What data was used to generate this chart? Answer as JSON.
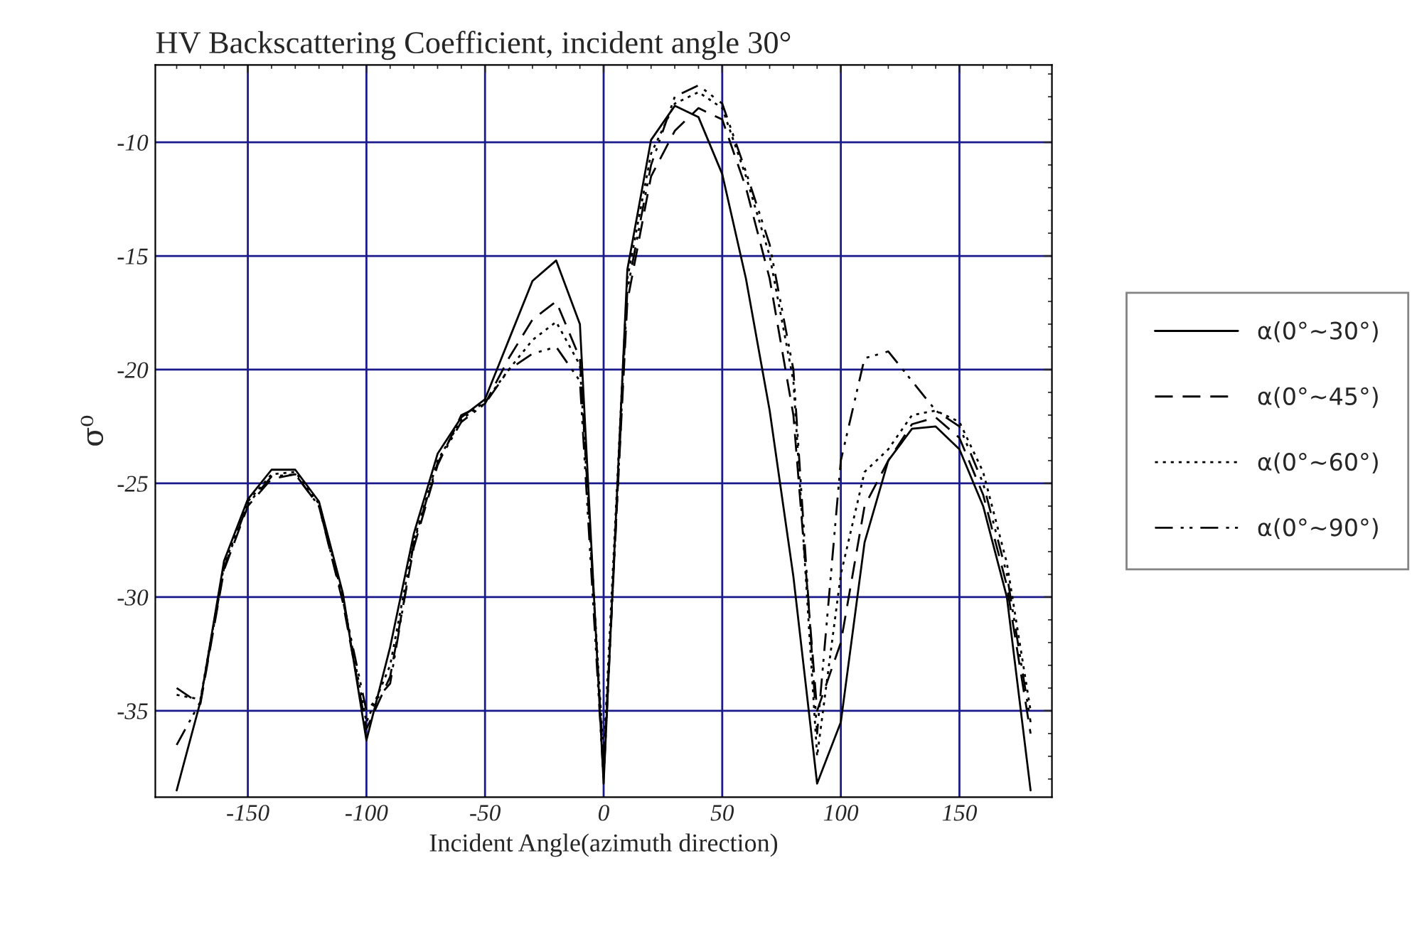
{
  "chart_data": {
    "type": "line",
    "title": "HV Backscattering Coefficient, incident angle 30°",
    "xlabel": "Incident Angle(azimuth direction)",
    "ylabel": "σ⁰",
    "x": [
      -180,
      -170,
      -160,
      -150,
      -140,
      -130,
      -120,
      -110,
      -100,
      -90,
      -80,
      -70,
      -60,
      -50,
      -40,
      -30,
      -20,
      -10,
      0,
      10,
      20,
      30,
      40,
      50,
      60,
      70,
      80,
      90,
      100,
      110,
      120,
      130,
      140,
      150,
      160,
      170,
      180
    ],
    "series": [
      {
        "name": "α(0°~30°)",
        "color": "#000000",
        "line_style": "solid",
        "values": [
          -38.5,
          -34.6,
          -28.4,
          -25.7,
          -24.4,
          -24.4,
          -25.8,
          -29.8,
          -36.3,
          -32.2,
          -27.2,
          -23.7,
          -22.1,
          -21.3,
          -18.7,
          -16.1,
          -15.2,
          -18.0,
          -38.2,
          -15.6,
          -9.9,
          -8.4,
          -8.9,
          -11.4,
          -16.0,
          -21.8,
          -29.1,
          -38.2,
          -35.5,
          -27.6,
          -24.0,
          -22.6,
          -22.5,
          -23.5,
          -26.0,
          -30.0,
          -38.5
        ]
      },
      {
        "name": "α(0°~45°)",
        "color": "#000000",
        "line_style": "dashed",
        "values": [
          -34.0,
          -34.7,
          -28.8,
          -26.0,
          -24.8,
          -24.6,
          -26.0,
          -30.2,
          -35.8,
          -33.5,
          -27.8,
          -24.2,
          -22.0,
          -21.5,
          -19.5,
          -17.8,
          -17.0,
          -19.5,
          -37.5,
          -17.0,
          -11.5,
          -9.5,
          -8.5,
          -9.0,
          -12.0,
          -16.0,
          -22.0,
          -35.0,
          -32.0,
          -26.0,
          -24.0,
          -22.4,
          -22.1,
          -23.0,
          -25.5,
          -29.5,
          -36.0
        ]
      },
      {
        "name": "α(0°~60°)",
        "color": "#000000",
        "line_style": "dotted",
        "values": [
          -34.3,
          -34.5,
          -28.6,
          -25.8,
          -24.6,
          -24.5,
          -25.9,
          -30.0,
          -35.5,
          -33.0,
          -27.5,
          -24.0,
          -22.2,
          -21.4,
          -20.0,
          -18.7,
          -17.9,
          -19.8,
          -37.0,
          -16.0,
          -10.5,
          -8.3,
          -7.8,
          -8.5,
          -11.5,
          -15.0,
          -20.5,
          -37.0,
          -29.0,
          -24.5,
          -23.5,
          -22.0,
          -21.8,
          -22.3,
          -24.5,
          -28.5,
          -35.0
        ]
      },
      {
        "name": "α(0°~90°)",
        "color": "#000000",
        "line_style": "dashdot",
        "values": [
          -36.5,
          -34.6,
          -28.7,
          -25.9,
          -24.7,
          -24.6,
          -26.0,
          -30.1,
          -35.0,
          -33.8,
          -27.6,
          -24.1,
          -22.3,
          -21.5,
          -20.0,
          -19.3,
          -19.0,
          -20.5,
          -38.0,
          -16.5,
          -11.0,
          -8.0,
          -7.5,
          -8.3,
          -11.3,
          -14.5,
          -20.0,
          -36.0,
          -24.0,
          -19.5,
          -19.2,
          -20.5,
          -21.8,
          -22.5,
          -25.0,
          -29.0,
          -35.5
        ]
      }
    ],
    "xlim": [
      -189,
      189
    ],
    "xticks": [
      -150,
      -100,
      -50,
      0,
      50,
      100,
      150
    ],
    "ylim": [
      -38.8,
      -6.6
    ],
    "yticks": [
      -35,
      -30,
      -25,
      -20,
      -15,
      -10
    ],
    "grid": true,
    "legend": "right",
    "marker": "none"
  }
}
